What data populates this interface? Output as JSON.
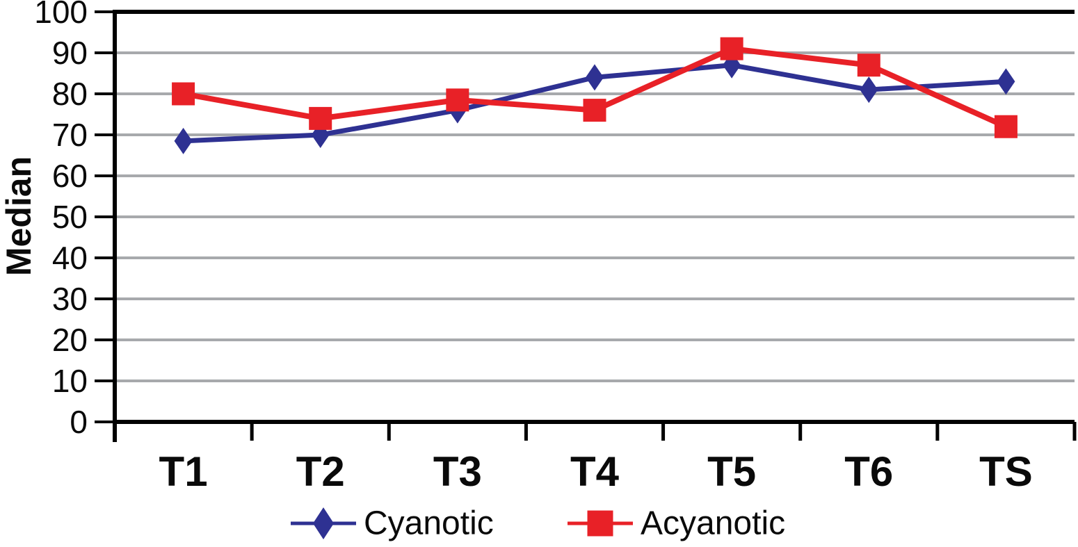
{
  "chart_data": {
    "type": "line",
    "title": "",
    "ylabel": "Median",
    "xlabel": "",
    "categories": [
      "T1",
      "T2",
      "T3",
      "T4",
      "T5",
      "T6",
      "TS"
    ],
    "series": [
      {
        "name": "Cyanotic",
        "color": "#2E3192",
        "marker": "diamond",
        "line_width": 7,
        "values": [
          68.5,
          70,
          76,
          84,
          87,
          81,
          83
        ]
      },
      {
        "name": "Acyanotic",
        "color": "#E82127",
        "marker": "square",
        "line_width": 8,
        "values": [
          80,
          74,
          78.5,
          76,
          91,
          87,
          72
        ]
      }
    ],
    "ylim": [
      0,
      100
    ],
    "ytick_step": 10,
    "ytick_labels": [
      "0",
      "10",
      "20",
      "30",
      "40",
      "50",
      "60",
      "70",
      "80",
      "90",
      "100"
    ],
    "grid": "horizontal",
    "gridline_color": "#A7A9AC",
    "axis_color": "#000000",
    "text_color": "#0a0a0a",
    "legend_position": "bottom"
  }
}
